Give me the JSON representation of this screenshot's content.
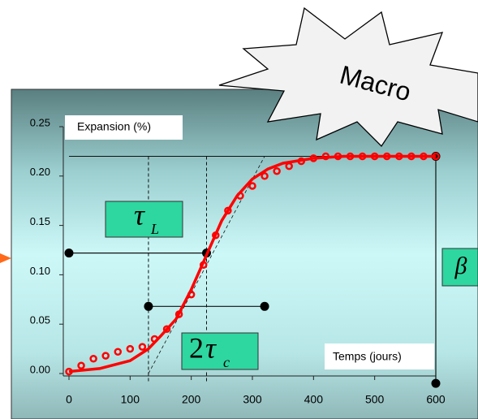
{
  "chart_data": {
    "type": "line",
    "xlim": [
      0,
      600
    ],
    "xticks": [
      0,
      100,
      200,
      300,
      400,
      500,
      600
    ],
    "ylim": [
      0,
      0.25
    ],
    "yticks": [
      {
        "value": 0,
        "label": "0.00"
      },
      0.05,
      {
        "value": 0.1,
        "label": "0.10"
      },
      0.15,
      {
        "value": 0.2,
        "label": "0.20"
      },
      0.25
    ],
    "series": [
      {
        "color": "#ff0000",
        "style": "line",
        "x": [
          0,
          50,
          100,
          130,
          150,
          175,
          200,
          225,
          250,
          275,
          300,
          325,
          350,
          400,
          450,
          500,
          550,
          600
        ],
        "values": [
          0.002,
          0.005,
          0.013,
          0.025,
          0.038,
          0.055,
          0.085,
          0.12,
          0.155,
          0.18,
          0.197,
          0.207,
          0.213,
          0.218,
          0.22,
          0.22,
          0.22,
          0.22
        ]
      },
      {
        "color": "#ff0000",
        "style": "markers",
        "x": [
          0,
          20,
          40,
          60,
          80,
          100,
          120,
          140,
          160,
          180,
          200,
          220,
          240,
          260,
          280,
          300,
          320,
          340,
          360,
          380,
          400,
          420,
          440,
          460,
          480,
          500,
          520,
          540,
          560,
          580,
          600
        ],
        "values": [
          0.002,
          0.008,
          0.015,
          0.018,
          0.022,
          0.025,
          0.027,
          0.035,
          0.045,
          0.06,
          0.08,
          0.11,
          0.14,
          0.165,
          0.18,
          0.19,
          0.2,
          0.205,
          0.21,
          0.215,
          0.218,
          0.22,
          0.22,
          0.22,
          0.22,
          0.22,
          0.22,
          0.22,
          0.22,
          0.22,
          0.22
        ]
      }
    ],
    "asymptote": 0.22,
    "vlines": [
      130,
      225
    ],
    "segments": [
      {
        "x": [
          0,
          225
        ],
        "y": [
          0.122,
          0.122
        ]
      },
      {
        "x": [
          130,
          320
        ],
        "y": [
          0.068,
          0.068
        ]
      },
      {
        "x": [
          600,
          600
        ],
        "y": [
          0.22,
          -0.01
        ]
      }
    ],
    "tangent": {
      "x": [
        130,
        320
      ],
      "y": [
        0,
        0.22
      ]
    },
    "annotations": {
      "y_label": "Expansion (%)",
      "x_label": "Temps (jours)",
      "callout": "Macro",
      "tau_L": {
        "symbol": "τ",
        "sub": "L"
      },
      "tau_c": {
        "prefix": "2",
        "symbol": "τ",
        "sub": "c"
      },
      "beta": "β"
    }
  }
}
